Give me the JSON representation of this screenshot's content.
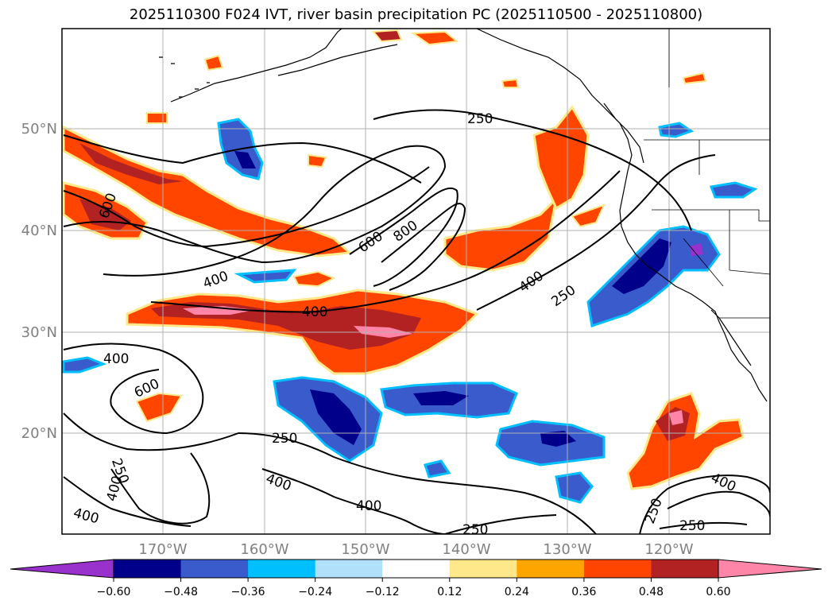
{
  "title": "2025110300 F024 IVT, river basin precipitation PC (2025110500 - 2025110800)",
  "map": {
    "lat_labels": [
      "50°N",
      "40°N",
      "30°N",
      "20°N"
    ],
    "lon_labels": [
      "170°W",
      "160°W",
      "150°W",
      "140°W",
      "130°W",
      "120°W"
    ],
    "contour_labels": [
      "250",
      "250",
      "250",
      "250",
      "250",
      "250",
      "250",
      "400",
      "400",
      "400",
      "400",
      "400",
      "400",
      "400",
      "400",
      "400",
      "600",
      "600",
      "600",
      "800"
    ],
    "contour_levels": [
      250,
      400,
      600,
      800
    ]
  },
  "colorbar": {
    "ticks": [
      "−0.60",
      "−0.48",
      "−0.36",
      "−0.24",
      "−0.12",
      "0.12",
      "0.24",
      "0.36",
      "0.48",
      "0.60"
    ],
    "colors": [
      "#9932cc",
      "#00008b",
      "#3a5bcc",
      "#00bfff",
      "#b0e0fa",
      "#ffffff",
      "#ffe88a",
      "#ffa500",
      "#ff4500",
      "#b22222",
      "#ff85a8",
      "#ff85a8"
    ]
  }
}
